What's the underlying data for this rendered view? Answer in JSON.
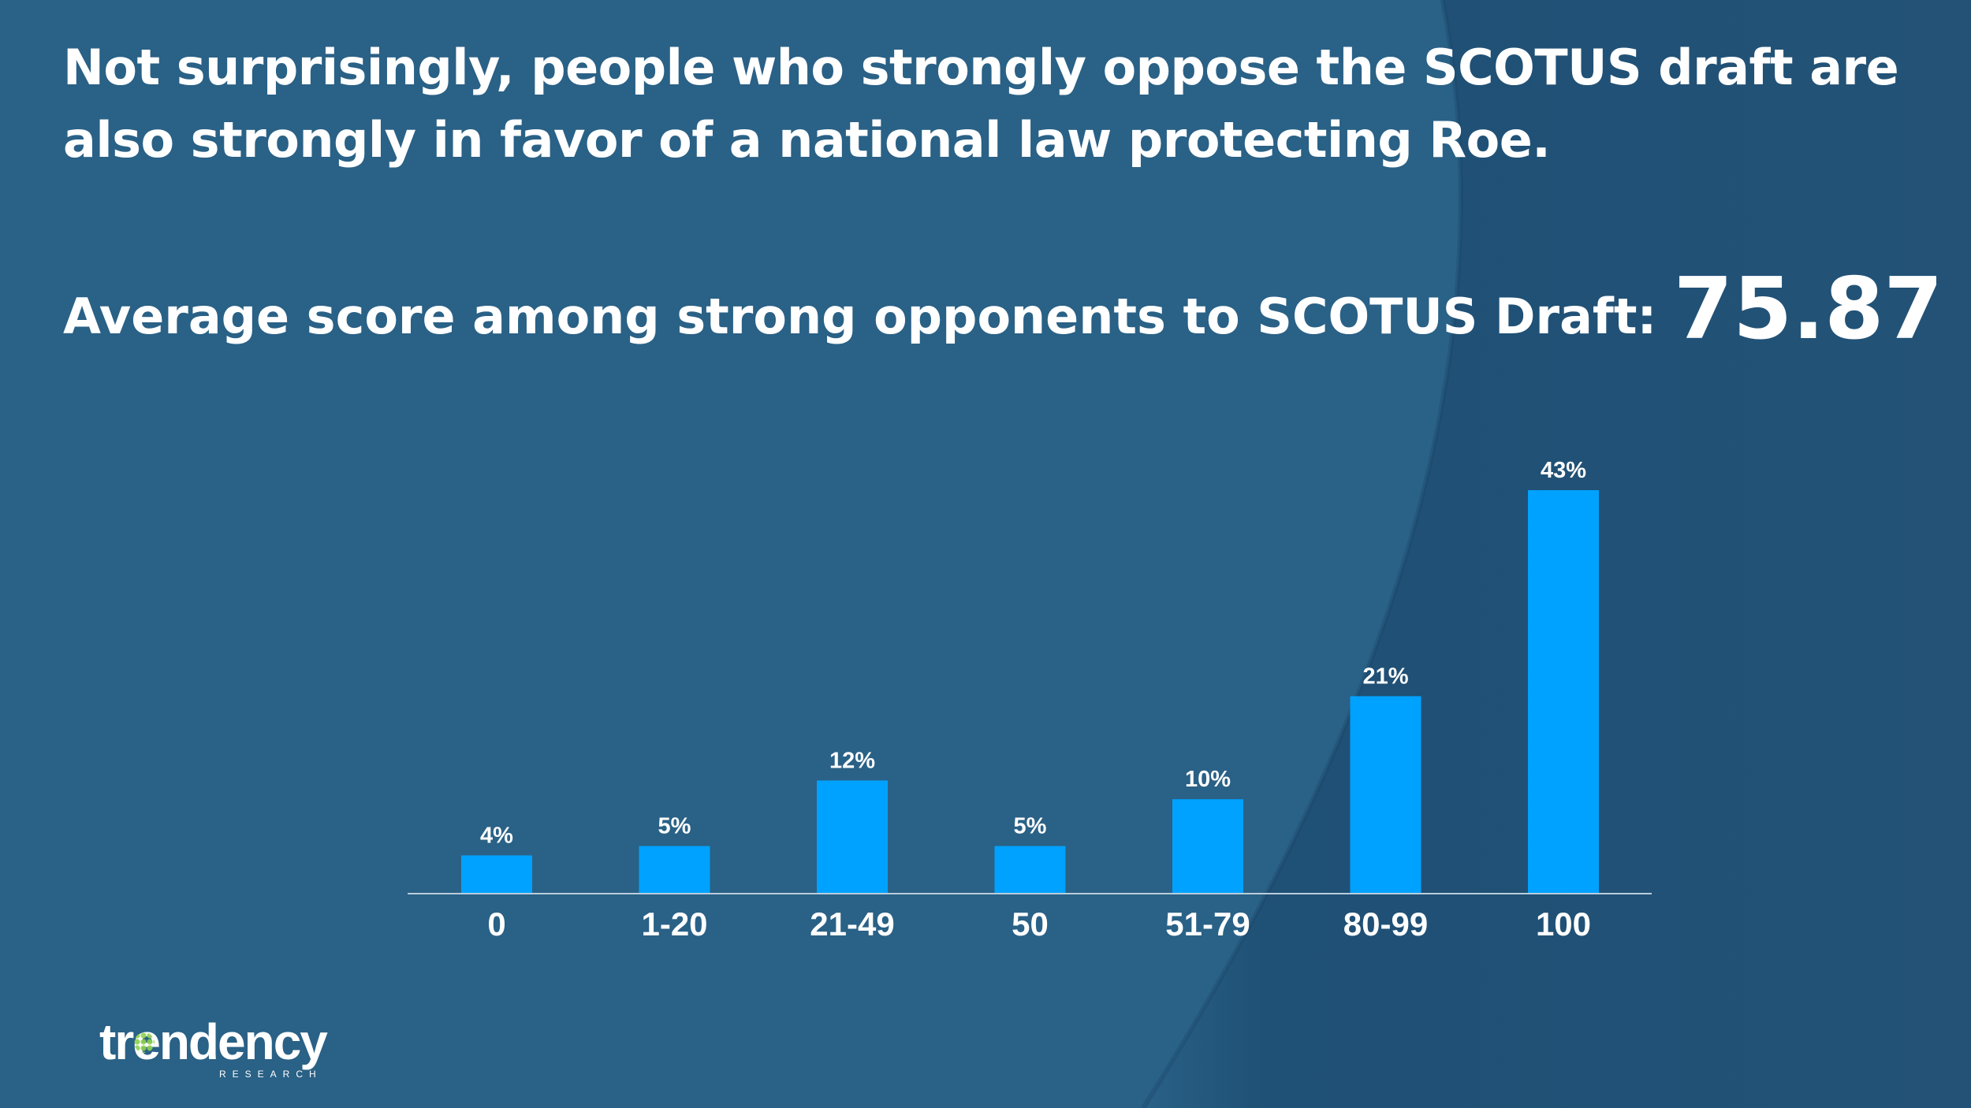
{
  "headline": "Not surprisingly, people who strongly oppose the SCOTUS draft are also strongly in favor of a national law protecting Roe.",
  "subhead": {
    "label": "Average score among strong opponents to SCOTUS Draft:",
    "value": "75.87"
  },
  "logo": {
    "name": "trendency",
    "sub": "RESEARCH"
  },
  "colors": {
    "background": "#2a6186",
    "bar": "#00a2ff",
    "text": "#ffffff",
    "axis": "#b9cddb"
  },
  "chart_data": {
    "type": "bar",
    "title": "",
    "xlabel": "",
    "ylabel": "",
    "categories": [
      "0",
      "1-20",
      "21-49",
      "50",
      "51-79",
      "80-99",
      "100"
    ],
    "values": [
      4,
      5,
      12,
      5,
      10,
      21,
      43
    ],
    "data_labels": [
      "4%",
      "5%",
      "12%",
      "5%",
      "10%",
      "21%",
      "43%"
    ],
    "ylim": [
      0,
      43
    ],
    "grid": false,
    "legend": "none"
  }
}
